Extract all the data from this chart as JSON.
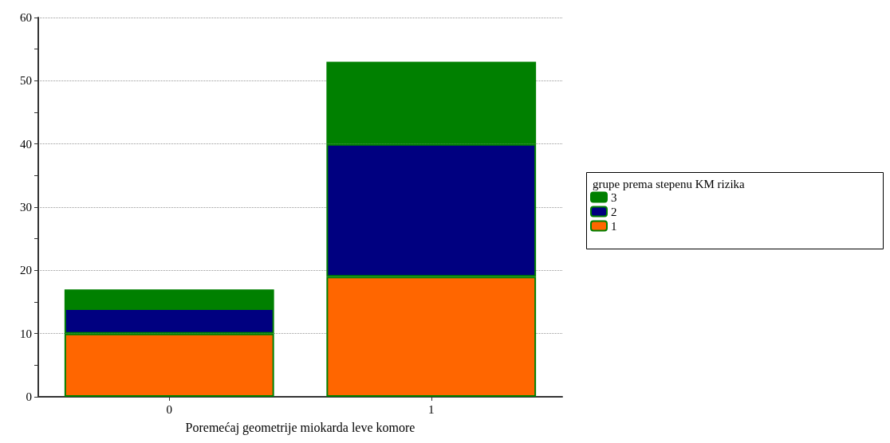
{
  "chart_data": {
    "type": "bar",
    "stacked": true,
    "xlabel": "Poremećaj geometrije miokarda leve komore",
    "legend_title": "grupe prema stepenu KM rizika",
    "categories": [
      "0",
      "1"
    ],
    "series": [
      {
        "name": "1",
        "color": "#ff6600",
        "values": [
          10,
          19
        ]
      },
      {
        "name": "2",
        "color": "#000080",
        "values": [
          4,
          21
        ]
      },
      {
        "name": "3",
        "color": "#008000",
        "values": [
          3,
          13
        ]
      }
    ],
    "ylim": [
      0,
      60
    ],
    "yticks": [
      0,
      {
        "value": 5,
        "label": null
      },
      10,
      {
        "value": 15,
        "label": null
      },
      20,
      {
        "value": 25,
        "label": null
      },
      30,
      {
        "value": 35,
        "label": null
      },
      40,
      {
        "value": 45,
        "label": null
      },
      50,
      {
        "value": 55,
        "label": null
      },
      60
    ],
    "grid": "y",
    "legend": "right"
  }
}
